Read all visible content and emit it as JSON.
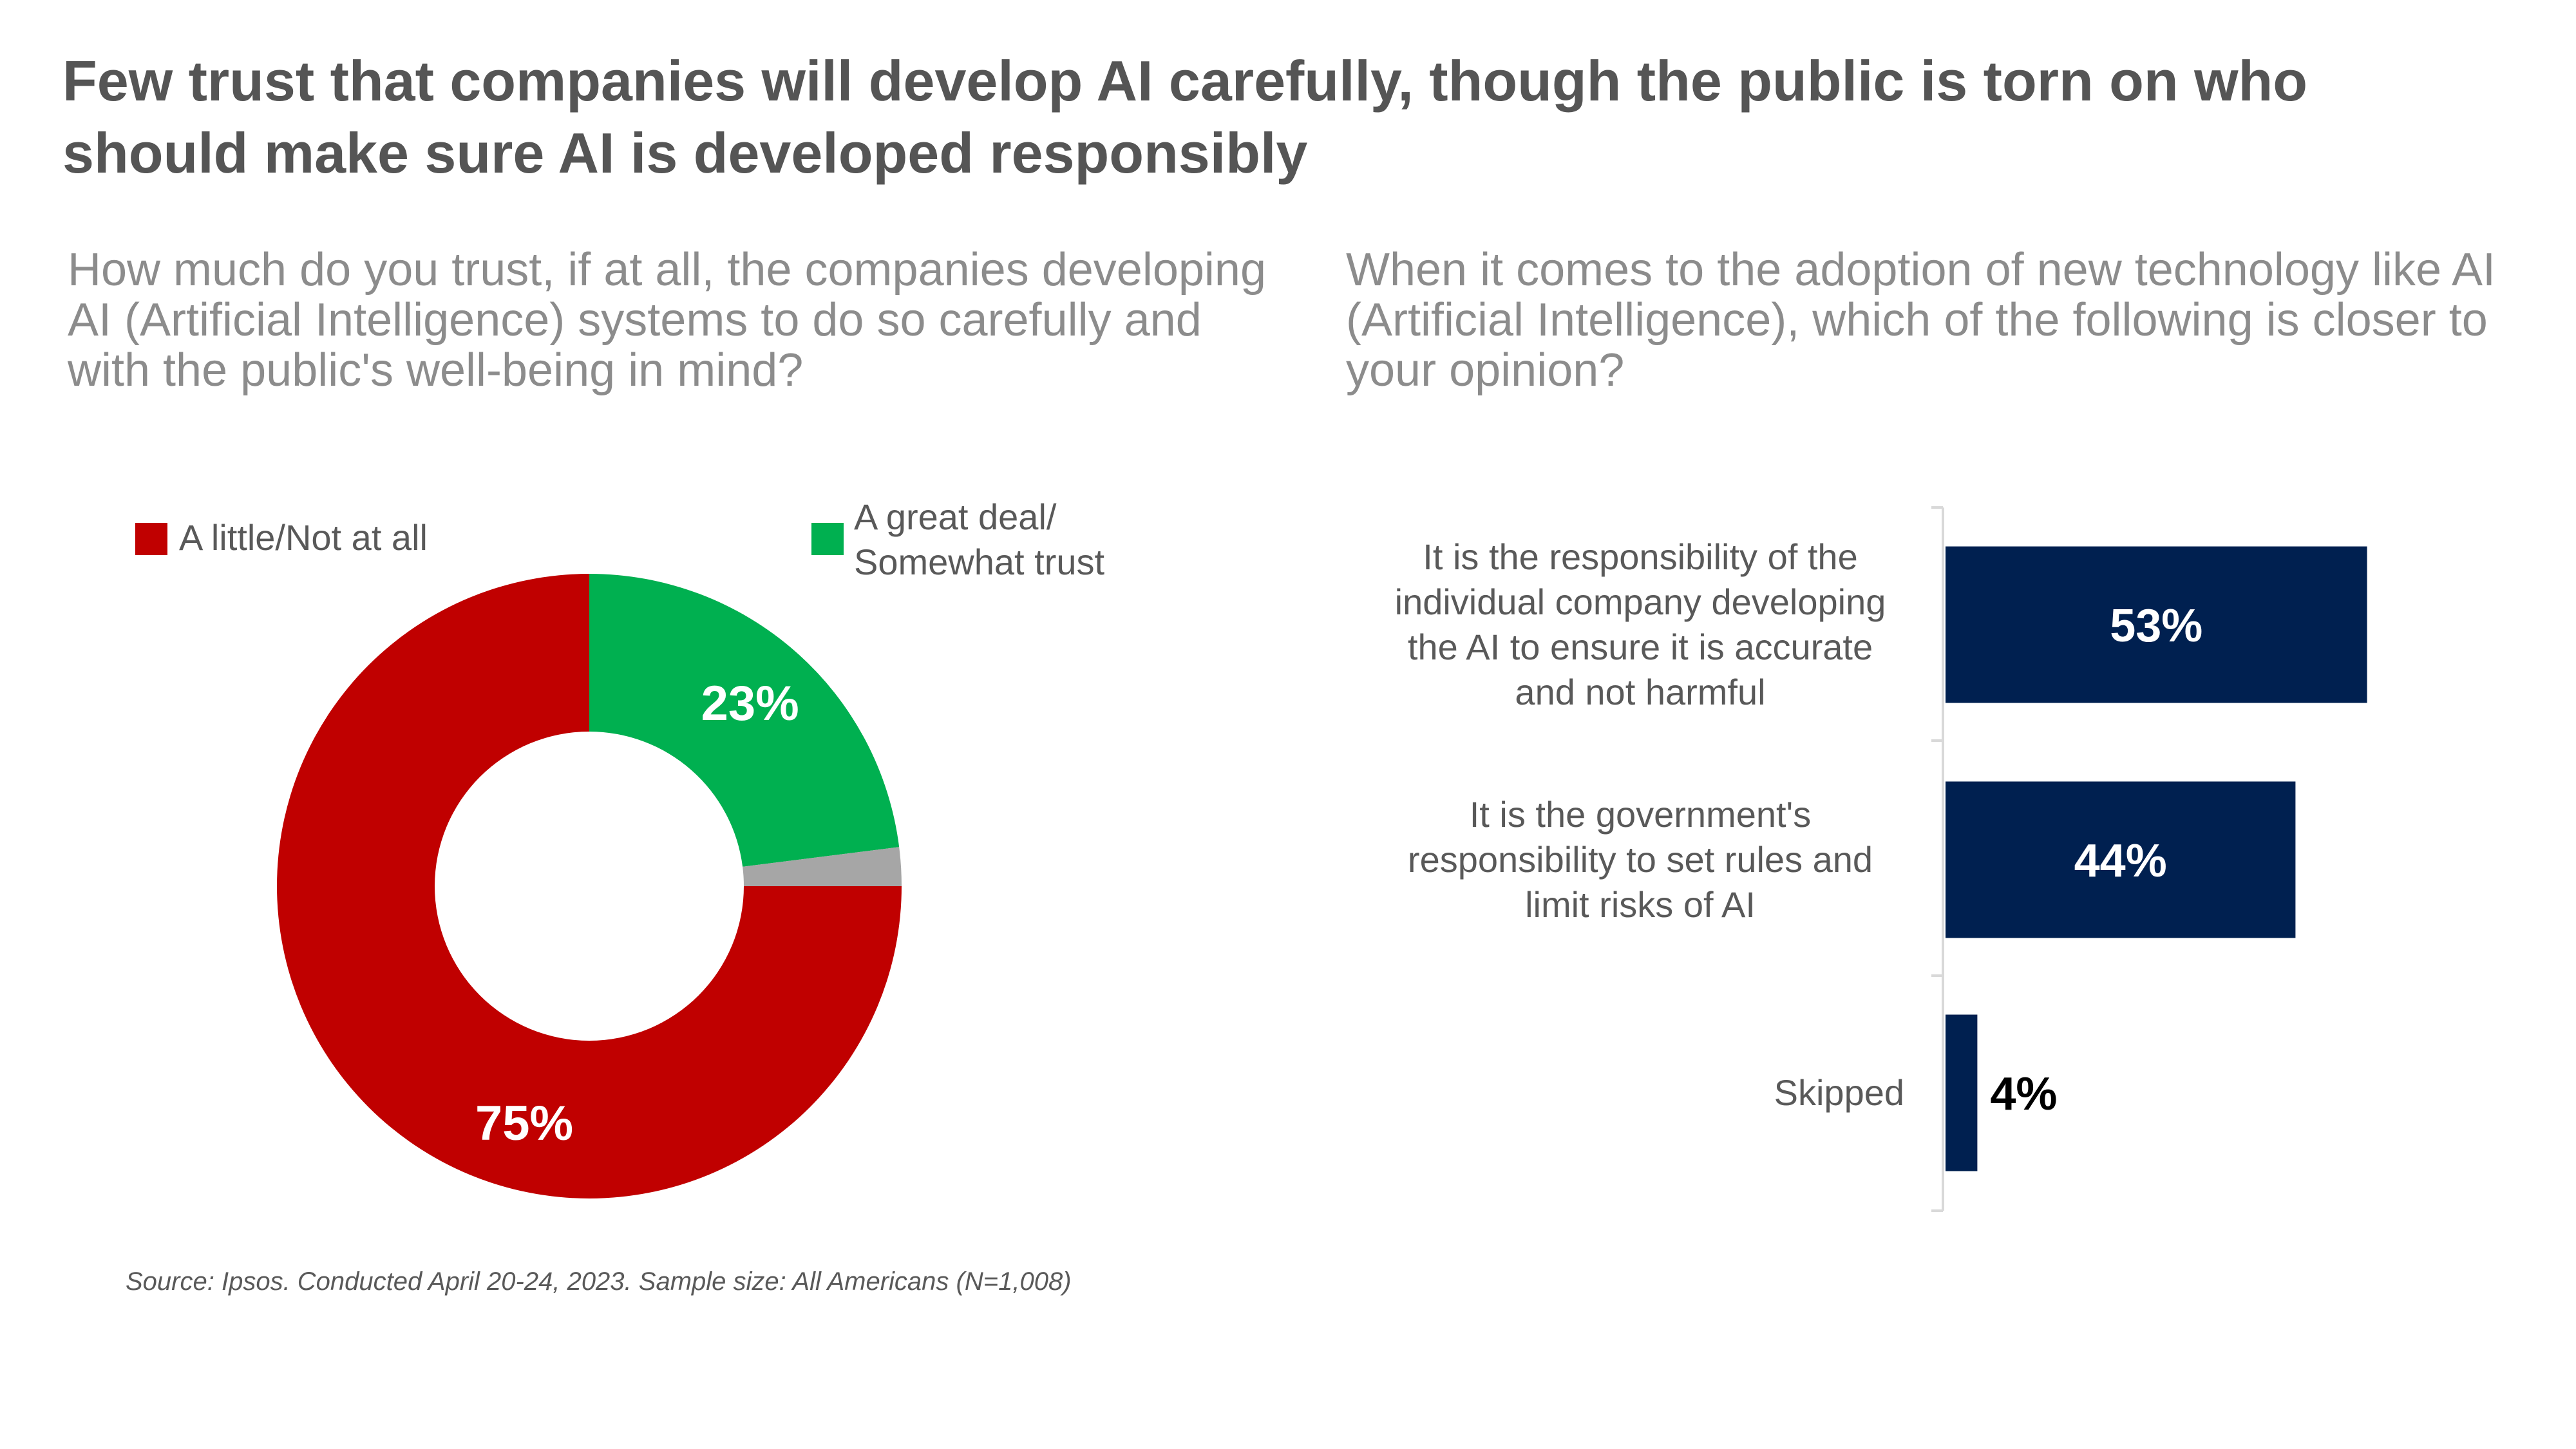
{
  "title": "Few trust that companies will develop AI carefully, though the public is torn on who should make sure AI is developed responsibly",
  "source": "Source: Ipsos. Conducted April 20-24, 2023. Sample size: All Americans (N=1,008)",
  "chart_data": [
    {
      "type": "pie",
      "title": "How much do you trust, if at all, the companies developing AI (Artificial Intelligence) systems to do so carefully and with the public's well-being in mind?",
      "slices": [
        {
          "name": "A great deal/ Somewhat trust",
          "value": 23,
          "label": "23%",
          "color": "#00b050"
        },
        {
          "name": "",
          "value": 2,
          "label": "",
          "color": "#a6a6a6"
        },
        {
          "name": "A little/Not at all",
          "value": 75,
          "label": "75%",
          "color": "#c00000"
        }
      ],
      "legend": [
        {
          "name": "A little/Not at all",
          "color": "#c00000"
        },
        {
          "name": "A great deal/ Somewhat trust",
          "color": "#00b050"
        }
      ],
      "legend_placement": "top"
    },
    {
      "type": "bar",
      "orientation": "horizontal",
      "title": "When it comes to the adoption of new technology like AI (Artificial Intelligence), which of the following is closer to your opinion?",
      "categories": [
        "It is the responsibility of the individual company developing the AI to ensure it is accurate and not harmful",
        "It is the government's responsibility to set rules and limit risks of AI",
        "Skipped"
      ],
      "values": [
        53,
        44,
        4
      ],
      "labels": [
        "53%",
        "44%",
        "4%"
      ],
      "color": "#002050",
      "xlim": [
        0,
        100
      ]
    }
  ]
}
